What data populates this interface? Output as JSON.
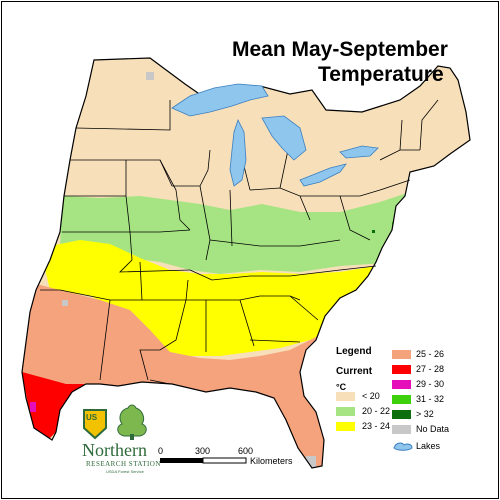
{
  "title": {
    "line1": "Mean May-September",
    "line2": "Temperature"
  },
  "legend": {
    "heading": "Legend",
    "subheading": "Current",
    "unit": "°C",
    "items": [
      {
        "label": "< 20",
        "color": "#f7dfb9"
      },
      {
        "label": "20 - 22",
        "color": "#a6e483"
      },
      {
        "label": "23 - 24",
        "color": "#ffff00"
      },
      {
        "label": "25 - 26",
        "color": "#f5a37d"
      },
      {
        "label": "27 - 28",
        "color": "#ff0000"
      },
      {
        "label": "29 - 30",
        "color": "#e40fb9"
      },
      {
        "label": "31 - 32",
        "color": "#3cd10a"
      },
      {
        "label": "> 32",
        "color": "#0d6e0d"
      },
      {
        "label": "No Data",
        "color": "#c8c8c8"
      },
      {
        "label": "Lakes",
        "color": "#8fc6ee"
      }
    ]
  },
  "scale_bar": {
    "ticks": [
      "0",
      "300",
      "600"
    ],
    "unit": "Kilometers"
  },
  "logo": {
    "shield_text": "US",
    "name": "Northern",
    "subtitle": "RESEARCH STATION",
    "tagline": "USDA Forest Service"
  },
  "colors": {
    "outline": "#000000",
    "lakes": "#8fc6ee",
    "lake_outline": "#3a7fc0",
    "logo_green": "#2f6a3a",
    "logo_yellow": "#f2c200"
  }
}
